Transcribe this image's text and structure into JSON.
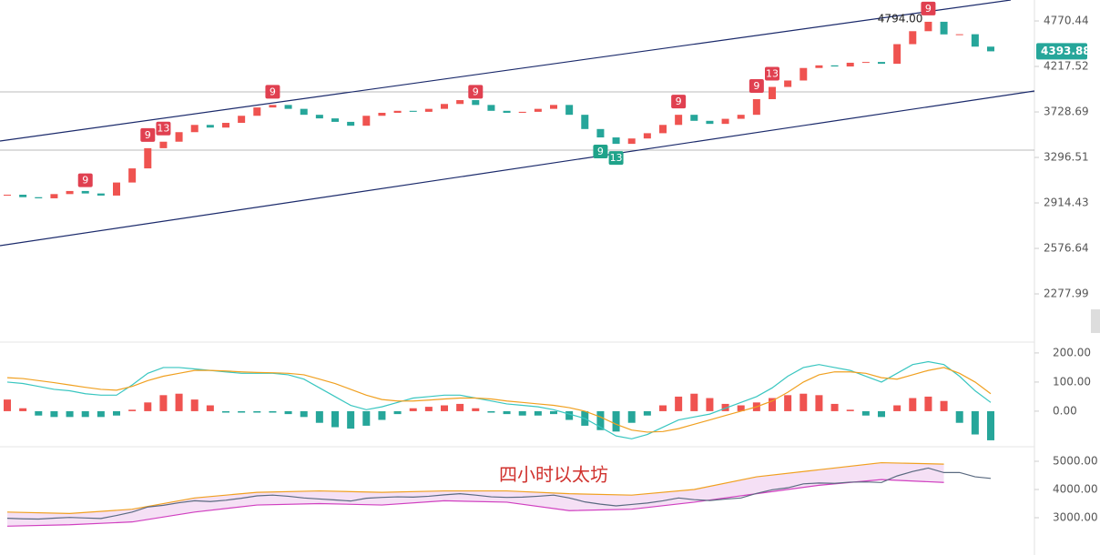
{
  "chart_data": [
    {
      "type": "candlestick",
      "log": true,
      "ylim": [
        2029,
        5049
      ],
      "yticks": [
        4770.44,
        4217.52,
        3728.69,
        3296.51,
        2914.43,
        2576.64,
        2277.99
      ],
      "closes": [
        2980,
        2960,
        2951,
        2985,
        3010,
        2990,
        2973,
        3080,
        3200,
        3380,
        3440,
        3530,
        3600,
        3574,
        3620,
        3690,
        3774,
        3800,
        3760,
        3700,
        3664,
        3630,
        3592,
        3690,
        3720,
        3740,
        3730,
        3760,
        3810,
        3850,
        3800,
        3740,
        3720,
        3730,
        3760,
        3800,
        3700,
        3560,
        3480,
        3420,
        3470,
        3520,
        3600,
        3700,
        3640,
        3610,
        3660,
        3700,
        3860,
        3990,
        4060,
        4200,
        4230,
        4217,
        4260,
        4269,
        4248,
        4480,
        4640,
        4760,
        4600,
        4602,
        4450,
        4393.88
      ],
      "up_color": "#ef5350",
      "down_color": "#26a69a",
      "last_price": 4393.88,
      "max_mark": {
        "at": 59,
        "value": 4794,
        "label": "4794.00"
      },
      "td_marks": [
        {
          "at": 5,
          "text": "9",
          "side": "above"
        },
        {
          "at": 9,
          "text": "9",
          "side": "above"
        },
        {
          "at": 10,
          "text": "13",
          "side": "above"
        },
        {
          "at": 17,
          "text": "9",
          "side": "above"
        },
        {
          "at": 30,
          "text": "9",
          "side": "above"
        },
        {
          "at": 38,
          "text": "9",
          "side": "below"
        },
        {
          "at": 39,
          "text": "13",
          "side": "below"
        },
        {
          "at": 43,
          "text": "9",
          "side": "above"
        },
        {
          "at": 48,
          "text": "9",
          "side": "above"
        },
        {
          "at": 49,
          "text": "13",
          "side": "above"
        },
        {
          "at": 59,
          "text": "9",
          "side": "above"
        }
      ]
    },
    {
      "type": "macd",
      "ylim": [
        -119,
        231
      ],
      "yticks": [
        {
          "value": 200,
          "label": "200.00"
        },
        {
          "value": 100,
          "label": "100.00"
        },
        {
          "value": 0,
          "label": "0.00"
        }
      ],
      "hist": [
        40,
        10,
        -15,
        -20,
        -20,
        -20,
        -20,
        -15,
        5,
        30,
        55,
        60,
        40,
        20,
        -5,
        -5,
        -5,
        -5,
        -10,
        -20,
        -40,
        -55,
        -60,
        -50,
        -30,
        -10,
        10,
        15,
        20,
        25,
        10,
        -5,
        -10,
        -15,
        -15,
        -10,
        -30,
        -50,
        -65,
        -70,
        -40,
        -15,
        20,
        50,
        60,
        45,
        25,
        20,
        30,
        45,
        55,
        60,
        55,
        25,
        5,
        -15,
        -20,
        20,
        45,
        50,
        35,
        -40,
        -80,
        -100
      ],
      "series": [
        {
          "color": "#39c6c0",
          "values": [
            100,
            95,
            85,
            75,
            70,
            60,
            55,
            55,
            90,
            130,
            150,
            150,
            145,
            140,
            135,
            130,
            130,
            130,
            125,
            110,
            80,
            50,
            20,
            5,
            15,
            30,
            45,
            50,
            55,
            55,
            45,
            35,
            25,
            20,
            15,
            5,
            -10,
            -25,
            -55,
            -85,
            -95,
            -80,
            -55,
            -30,
            -20,
            -10,
            10,
            30,
            50,
            80,
            120,
            150,
            160,
            150,
            140,
            120,
            100,
            130,
            160,
            170,
            160,
            120,
            70,
            30
          ]
        },
        {
          "color": "#f0a020",
          "values": [
            115,
            112,
            105,
            98,
            90,
            82,
            75,
            72,
            85,
            105,
            120,
            130,
            140,
            140,
            138,
            135,
            133,
            132,
            130,
            125,
            110,
            95,
            75,
            55,
            40,
            35,
            35,
            38,
            42,
            45,
            45,
            42,
            35,
            30,
            25,
            20,
            12,
            0,
            -20,
            -45,
            -65,
            -72,
            -70,
            -60,
            -45,
            -30,
            -15,
            0,
            15,
            35,
            65,
            100,
            125,
            135,
            135,
            130,
            115,
            110,
            125,
            140,
            150,
            130,
            100,
            60
          ]
        }
      ]
    },
    {
      "type": "band",
      "title": "四小时以太坊",
      "ylim": [
        1839,
        5484
      ],
      "yticks": [
        {
          "value": 5000,
          "label": "5000.00"
        },
        {
          "value": 4000,
          "label": "4000.00"
        },
        {
          "value": 3000,
          "label": "3000.00"
        }
      ],
      "x": [
        0,
        4,
        8,
        12,
        16,
        20,
        24,
        28,
        32,
        36,
        40,
        44,
        48,
        52,
        56,
        60
      ],
      "upper": [
        3200,
        3150,
        3300,
        3700,
        3900,
        3950,
        3900,
        3950,
        3950,
        3850,
        3800,
        4000,
        4450,
        4700,
        4950,
        4900
      ],
      "lower": [
        2700,
        2750,
        2850,
        3200,
        3450,
        3500,
        3450,
        3600,
        3550,
        3250,
        3300,
        3550,
        3850,
        4150,
        4350,
        4250
      ],
      "upper_color": "#f0a020",
      "lower_color": "#d040c0",
      "fill": "#f3d8f3"
    }
  ]
}
